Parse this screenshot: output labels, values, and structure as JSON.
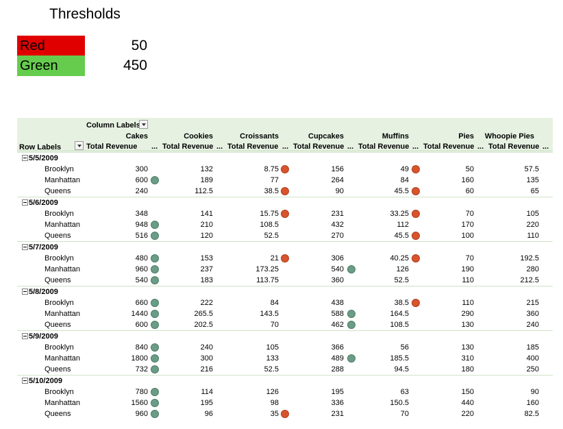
{
  "title": "Thresholds",
  "thresholds": [
    {
      "label": "Red",
      "value": "50",
      "color": "#e10000"
    },
    {
      "label": "Green",
      "value": "450",
      "color": "#66cc4d"
    }
  ],
  "pivot": {
    "column_labels": "Column Labels",
    "row_labels": "Row Labels",
    "total_revenue_label": "Total Revenue",
    "ellipsis": "...",
    "products": [
      "Cakes",
      "Cookies",
      "Croissants",
      "Cupcakes",
      "Muffins",
      "Pies",
      "Whoopie Pies"
    ],
    "groups": [
      {
        "date": "5/5/2009",
        "rows": [
          {
            "city": "Brooklyn",
            "values": [
              "300",
              "132",
              "8.75",
              "156",
              "49",
              "50",
              "57.5"
            ],
            "status": [
              "",
              "",
              "red",
              "",
              "red",
              "",
              ""
            ]
          },
          {
            "city": "Manhattan",
            "values": [
              "600",
              "189",
              "77",
              "264",
              "84",
              "160",
              "135"
            ],
            "status": [
              "green",
              "",
              "",
              "",
              "",
              "",
              ""
            ]
          },
          {
            "city": "Queens",
            "values": [
              "240",
              "112.5",
              "38.5",
              "90",
              "45.5",
              "60",
              "65"
            ],
            "status": [
              "",
              "",
              "red",
              "",
              "red",
              "",
              ""
            ]
          }
        ]
      },
      {
        "date": "5/6/2009",
        "rows": [
          {
            "city": "Brooklyn",
            "values": [
              "348",
              "141",
              "15.75",
              "231",
              "33.25",
              "70",
              "105"
            ],
            "status": [
              "",
              "",
              "red",
              "",
              "red",
              "",
              ""
            ]
          },
          {
            "city": "Manhattan",
            "values": [
              "948",
              "210",
              "108.5",
              "432",
              "112",
              "170",
              "220"
            ],
            "status": [
              "green",
              "",
              "",
              "",
              "",
              "",
              ""
            ]
          },
          {
            "city": "Queens",
            "values": [
              "516",
              "120",
              "52.5",
              "270",
              "45.5",
              "100",
              "110"
            ],
            "status": [
              "green",
              "",
              "",
              "",
              "red",
              "",
              ""
            ]
          }
        ]
      },
      {
        "date": "5/7/2009",
        "rows": [
          {
            "city": "Brooklyn",
            "values": [
              "480",
              "153",
              "21",
              "306",
              "40.25",
              "70",
              "192.5"
            ],
            "status": [
              "green",
              "",
              "red",
              "",
              "red",
              "",
              ""
            ]
          },
          {
            "city": "Manhattan",
            "values": [
              "960",
              "237",
              "173.25",
              "540",
              "126",
              "190",
              "280"
            ],
            "status": [
              "green",
              "",
              "",
              "green",
              "",
              "",
              ""
            ]
          },
          {
            "city": "Queens",
            "values": [
              "540",
              "183",
              "113.75",
              "360",
              "52.5",
              "110",
              "212.5"
            ],
            "status": [
              "green",
              "",
              "",
              "",
              "",
              "",
              ""
            ]
          }
        ]
      },
      {
        "date": "5/8/2009",
        "rows": [
          {
            "city": "Brooklyn",
            "values": [
              "660",
              "222",
              "84",
              "438",
              "38.5",
              "110",
              "215"
            ],
            "status": [
              "green",
              "",
              "",
              "",
              "red",
              "",
              ""
            ]
          },
          {
            "city": "Manhattan",
            "values": [
              "1440",
              "265.5",
              "143.5",
              "588",
              "164.5",
              "290",
              "360"
            ],
            "status": [
              "green",
              "",
              "",
              "green",
              "",
              "",
              ""
            ]
          },
          {
            "city": "Queens",
            "values": [
              "600",
              "202.5",
              "70",
              "462",
              "108.5",
              "130",
              "240"
            ],
            "status": [
              "green",
              "",
              "",
              "green",
              "",
              "",
              ""
            ]
          }
        ]
      },
      {
        "date": "5/9/2009",
        "rows": [
          {
            "city": "Brooklyn",
            "values": [
              "840",
              "240",
              "105",
              "366",
              "56",
              "130",
              "185"
            ],
            "status": [
              "green",
              "",
              "",
              "",
              "",
              "",
              ""
            ]
          },
          {
            "city": "Manhattan",
            "values": [
              "1800",
              "300",
              "133",
              "489",
              "185.5",
              "310",
              "400"
            ],
            "status": [
              "green",
              "",
              "",
              "green",
              "",
              "",
              ""
            ]
          },
          {
            "city": "Queens",
            "values": [
              "732",
              "216",
              "52.5",
              "288",
              "94.5",
              "180",
              "250"
            ],
            "status": [
              "green",
              "",
              "",
              "",
              "",
              "",
              ""
            ]
          }
        ]
      },
      {
        "date": "5/10/2009",
        "rows": [
          {
            "city": "Brooklyn",
            "values": [
              "780",
              "114",
              "126",
              "195",
              "63",
              "150",
              "90"
            ],
            "status": [
              "green",
              "",
              "",
              "",
              "",
              "",
              ""
            ]
          },
          {
            "city": "Manhattan",
            "values": [
              "1560",
              "195",
              "98",
              "336",
              "150.5",
              "440",
              "160"
            ],
            "status": [
              "green",
              "",
              "",
              "",
              "",
              "",
              ""
            ]
          },
          {
            "city": "Queens",
            "values": [
              "960",
              "96",
              "35",
              "231",
              "70",
              "220",
              "82.5"
            ],
            "status": [
              "green",
              "",
              "red",
              "",
              "",
              "",
              ""
            ]
          }
        ]
      }
    ]
  }
}
